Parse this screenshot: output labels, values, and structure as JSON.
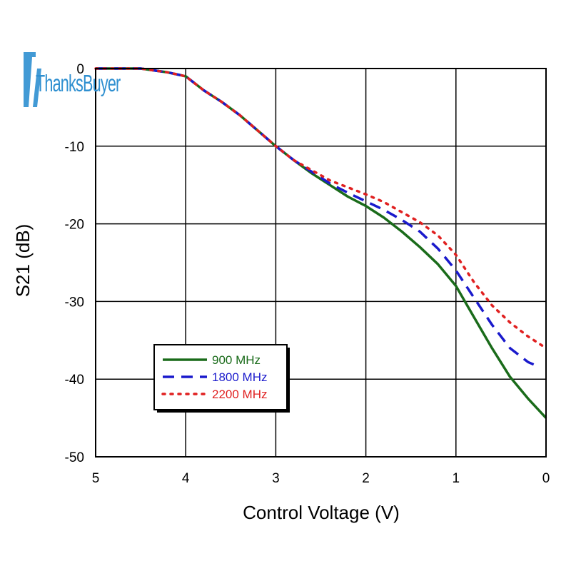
{
  "logo": {
    "text": "ThanksBuyer"
  },
  "chart_data": {
    "type": "line",
    "title": "",
    "xlabel": "Control Voltage (V)",
    "ylabel": "S21 (dB)",
    "xlim": [
      5,
      0
    ],
    "ylim": [
      -50,
      0
    ],
    "x_reversed": true,
    "xticks": [
      5,
      4,
      3,
      2,
      1,
      0
    ],
    "yticks": [
      0,
      -10,
      -20,
      -30,
      -40,
      -50
    ],
    "xtick_labels": [
      "5",
      "4",
      "3",
      "2",
      "1",
      "0"
    ],
    "ytick_labels": [
      "0",
      "-10",
      "-20",
      "-30",
      "-40",
      "-50"
    ],
    "grid": true,
    "legend_position": "lower-left",
    "series": [
      {
        "name": "900 MHz",
        "color": "#1a6b1a",
        "style": "solid",
        "x": [
          5.0,
          4.5,
          4.2,
          4.0,
          3.8,
          3.6,
          3.4,
          3.2,
          3.0,
          2.8,
          2.6,
          2.4,
          2.2,
          2.0,
          1.8,
          1.6,
          1.4,
          1.2,
          1.0,
          0.8,
          0.6,
          0.4,
          0.2,
          0.0
        ],
        "y": [
          0,
          0,
          -0.5,
          -1,
          -2.8,
          -4.3,
          -6,
          -8,
          -10,
          -11.8,
          -13.5,
          -15,
          -16.5,
          -17.7,
          -19.2,
          -21,
          -23,
          -25.2,
          -28,
          -32,
          -36,
          -39.7,
          -42.5,
          -45
        ]
      },
      {
        "name": "1800 MHz",
        "color": "#1a1acc",
        "style": "dashed",
        "x": [
          5.0,
          4.5,
          4.2,
          4.0,
          3.8,
          3.6,
          3.4,
          3.2,
          3.0,
          2.8,
          2.6,
          2.4,
          2.2,
          2.0,
          1.8,
          1.6,
          1.4,
          1.2,
          1.0,
          0.8,
          0.6,
          0.4,
          0.2,
          0.1
        ],
        "y": [
          0,
          0,
          -0.5,
          -1,
          -2.8,
          -4.3,
          -6,
          -8,
          -10,
          -11.8,
          -13.3,
          -14.8,
          -16,
          -17.1,
          -18.2,
          -19.5,
          -21,
          -23.2,
          -26,
          -29.5,
          -33,
          -36,
          -37.8,
          -38.3
        ]
      },
      {
        "name": "2200 MHz",
        "color": "#e02020",
        "style": "dotted",
        "x": [
          5.0,
          4.5,
          4.2,
          4.0,
          3.8,
          3.6,
          3.4,
          3.2,
          3.0,
          2.8,
          2.6,
          2.4,
          2.2,
          2.0,
          1.8,
          1.6,
          1.4,
          1.2,
          1.0,
          0.8,
          0.6,
          0.4,
          0.2,
          0.0
        ],
        "y": [
          0,
          0,
          -0.5,
          -1,
          -2.8,
          -4.3,
          -6,
          -8,
          -10,
          -11.8,
          -13.1,
          -14.4,
          -15.3,
          -16.2,
          -17.2,
          -18.5,
          -19.8,
          -21.5,
          -24,
          -27.5,
          -30.5,
          -32.7,
          -34.5,
          -36
        ]
      }
    ]
  }
}
